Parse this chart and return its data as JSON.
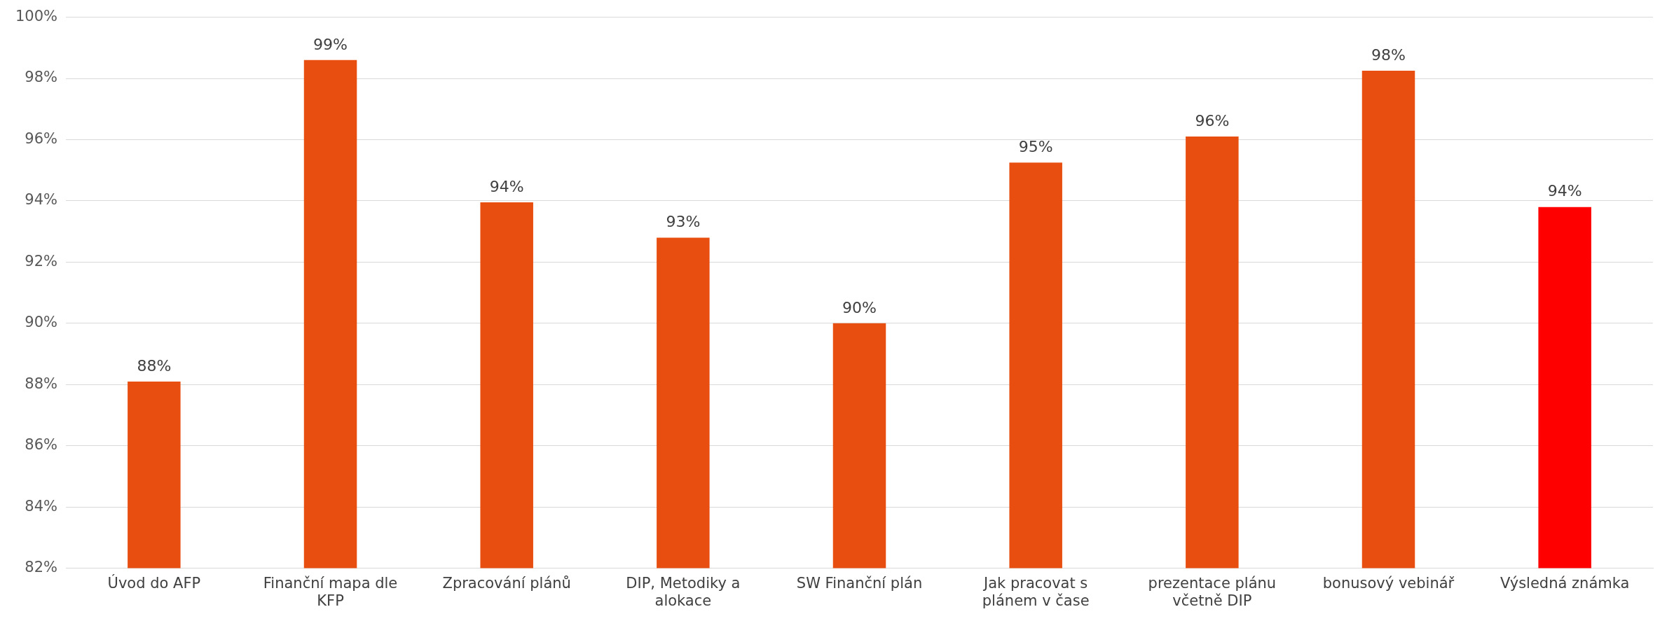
{
  "chart_data": {
    "type": "bar",
    "categories": [
      "Úvod do AFP",
      "Finanční mapa dle KFP",
      "Zpracování plánů",
      "DIP, Metodiky a alokace",
      "SW Finanční plán",
      "Jak pracovat s plánem v čase",
      "prezentace plánu včetně DIP",
      "bonusový vebinář",
      "Výsledná známka"
    ],
    "values": [
      88.1,
      98.6,
      93.95,
      92.8,
      90.0,
      95.25,
      96.1,
      98.25,
      93.8
    ],
    "colors": [
      "#e84e0f",
      "#e84e0f",
      "#e84e0f",
      "#e84e0f",
      "#e84e0f",
      "#e84e0f",
      "#e84e0f",
      "#e84e0f",
      "#ff0000"
    ],
    "value_labels": [
      "88%",
      "99%",
      "94%",
      "93%",
      "90%",
      "95%",
      "96%",
      "98%",
      "94%"
    ],
    "ylim": [
      82,
      100
    ],
    "yticks": [
      {
        "value": 82,
        "label": "82%"
      },
      {
        "value": 84,
        "label": "84%"
      },
      {
        "value": 86,
        "label": "86%"
      },
      {
        "value": 88,
        "label": "88%"
      },
      {
        "value": 90,
        "label": "90%"
      },
      {
        "value": 92,
        "label": "92%"
      },
      {
        "value": 94,
        "label": "94%"
      },
      {
        "value": 96,
        "label": "96%"
      },
      {
        "value": 98,
        "label": "98%"
      },
      {
        "value": 100,
        "label": "100%"
      }
    ],
    "grid": "y"
  }
}
